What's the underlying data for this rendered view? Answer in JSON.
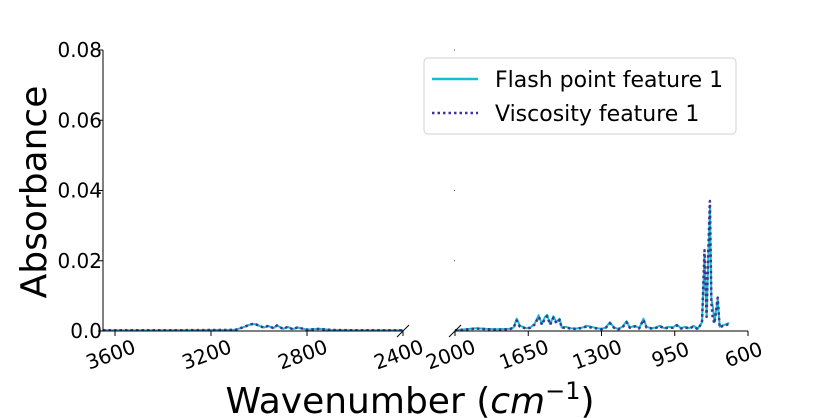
{
  "chart_data": {
    "type": "line",
    "title": "",
    "xlabel": "Wavenumber (cm⁻¹)",
    "xlabel_base": "Wavenumber (",
    "xlabel_unit": "cm",
    "xlabel_exp": "−1",
    "xlabel_close": ")",
    "ylabel": "Absorbance",
    "ylim": [
      0,
      0.08
    ],
    "y_ticks": [
      0.0,
      0.02,
      0.04,
      0.06,
      0.08
    ],
    "y_tick_labels": [
      "0.0",
      "0.02",
      "0.04",
      "0.06",
      "0.08"
    ],
    "broken_x_axis": true,
    "x_segments": [
      {
        "xlim": [
          3650,
          2400
        ],
        "ticks": [
          3600,
          3200,
          2800,
          2400
        ],
        "tick_labels": [
          "3600",
          "3200",
          "2800",
          "2400"
        ]
      },
      {
        "xlim": [
          2000,
          600
        ],
        "ticks": [
          2000,
          1650,
          1300,
          950,
          600
        ],
        "tick_labels": [
          "2000",
          "1650",
          "1300",
          "950",
          "600"
        ]
      }
    ],
    "legend_position": "top-right",
    "grid": false,
    "series": [
      {
        "name": "Flash point feature 1",
        "color": "#17becf",
        "style": "solid",
        "points": [
          [
            3650,
            0.0002
          ],
          [
            3400,
            0.0002
          ],
          [
            3100,
            0.0003
          ],
          [
            3060,
            0.0012
          ],
          [
            3040,
            0.0018
          ],
          [
            3020,
            0.002
          ],
          [
            3000,
            0.0015
          ],
          [
            2980,
            0.001
          ],
          [
            2960,
            0.0014
          ],
          [
            2940,
            0.0008
          ],
          [
            2925,
            0.0016
          ],
          [
            2900,
            0.0006
          ],
          [
            2880,
            0.0012
          ],
          [
            2860,
            0.0005
          ],
          [
            2840,
            0.001
          ],
          [
            2800,
            0.0004
          ],
          [
            2750,
            0.0006
          ],
          [
            2700,
            0.0003
          ],
          [
            2600,
            0.0002
          ],
          [
            2400,
            0.0002
          ],
          [
            2000,
            0.0002
          ],
          [
            1950,
            0.0005
          ],
          [
            1900,
            0.0008
          ],
          [
            1850,
            0.0006
          ],
          [
            1800,
            0.0005
          ],
          [
            1740,
            0.0006
          ],
          [
            1720,
            0.001
          ],
          [
            1705,
            0.0035
          ],
          [
            1690,
            0.0015
          ],
          [
            1660,
            0.0008
          ],
          [
            1640,
            0.001
          ],
          [
            1620,
            0.002
          ],
          [
            1600,
            0.0045
          ],
          [
            1585,
            0.002
          ],
          [
            1570,
            0.004
          ],
          [
            1560,
            0.0046
          ],
          [
            1545,
            0.002
          ],
          [
            1530,
            0.0042
          ],
          [
            1515,
            0.0025
          ],
          [
            1500,
            0.0035
          ],
          [
            1490,
            0.001
          ],
          [
            1470,
            0.0012
          ],
          [
            1450,
            0.0008
          ],
          [
            1420,
            0.0007
          ],
          [
            1390,
            0.001
          ],
          [
            1370,
            0.0015
          ],
          [
            1350,
            0.0012
          ],
          [
            1320,
            0.0008
          ],
          [
            1300,
            0.0006
          ],
          [
            1280,
            0.001
          ],
          [
            1260,
            0.0025
          ],
          [
            1240,
            0.001
          ],
          [
            1220,
            0.0006
          ],
          [
            1200,
            0.0012
          ],
          [
            1180,
            0.0028
          ],
          [
            1165,
            0.001
          ],
          [
            1140,
            0.0015
          ],
          [
            1120,
            0.0008
          ],
          [
            1100,
            0.0035
          ],
          [
            1085,
            0.0012
          ],
          [
            1060,
            0.0008
          ],
          [
            1040,
            0.001
          ],
          [
            1020,
            0.0015
          ],
          [
            1000,
            0.0008
          ],
          [
            980,
            0.0012
          ],
          [
            960,
            0.001
          ],
          [
            940,
            0.0018
          ],
          [
            920,
            0.0008
          ],
          [
            900,
            0.0012
          ],
          [
            880,
            0.0008
          ],
          [
            860,
            0.0015
          ],
          [
            840,
            0.0006
          ],
          [
            820,
            0.0025
          ],
          [
            808,
            0.021
          ],
          [
            798,
            0.004
          ],
          [
            790,
            0.02
          ],
          [
            782,
            0.035
          ],
          [
            775,
            0.009
          ],
          [
            768,
            0.007
          ],
          [
            760,
            0.0025
          ],
          [
            745,
            0.009
          ],
          [
            735,
            0.0012
          ],
          [
            725,
            0.0015
          ],
          [
            700,
            0.002
          ],
          [
            690,
            0.0023
          ]
        ]
      },
      {
        "name": "Viscosity feature 1",
        "color": "#3c3596",
        "style": "dotted",
        "points": [
          [
            3650,
            0.0002
          ],
          [
            3400,
            0.0002
          ],
          [
            3100,
            0.0003
          ],
          [
            3060,
            0.0012
          ],
          [
            3040,
            0.0018
          ],
          [
            3020,
            0.0021
          ],
          [
            3000,
            0.0015
          ],
          [
            2980,
            0.001
          ],
          [
            2960,
            0.0015
          ],
          [
            2940,
            0.0008
          ],
          [
            2925,
            0.0016
          ],
          [
            2900,
            0.0006
          ],
          [
            2880,
            0.0012
          ],
          [
            2860,
            0.0005
          ],
          [
            2840,
            0.001
          ],
          [
            2800,
            0.0004
          ],
          [
            2750,
            0.0006
          ],
          [
            2700,
            0.0003
          ],
          [
            2600,
            0.0002
          ],
          [
            2400,
            0.0002
          ],
          [
            2000,
            0.0002
          ],
          [
            1950,
            0.0004
          ],
          [
            1900,
            0.0007
          ],
          [
            1850,
            0.0005
          ],
          [
            1800,
            0.0004
          ],
          [
            1740,
            0.0005
          ],
          [
            1720,
            0.0009
          ],
          [
            1705,
            0.003
          ],
          [
            1690,
            0.0012
          ],
          [
            1660,
            0.0007
          ],
          [
            1640,
            0.0009
          ],
          [
            1620,
            0.0018
          ],
          [
            1600,
            0.004
          ],
          [
            1585,
            0.0018
          ],
          [
            1570,
            0.0036
          ],
          [
            1560,
            0.0042
          ],
          [
            1545,
            0.0018
          ],
          [
            1530,
            0.0038
          ],
          [
            1515,
            0.0022
          ],
          [
            1500,
            0.0032
          ],
          [
            1490,
            0.0009
          ],
          [
            1470,
            0.001
          ],
          [
            1450,
            0.0007
          ],
          [
            1420,
            0.0006
          ],
          [
            1390,
            0.0009
          ],
          [
            1370,
            0.0013
          ],
          [
            1350,
            0.001
          ],
          [
            1320,
            0.0007
          ],
          [
            1300,
            0.0005
          ],
          [
            1280,
            0.0009
          ],
          [
            1260,
            0.0022
          ],
          [
            1240,
            0.0009
          ],
          [
            1220,
            0.0005
          ],
          [
            1200,
            0.001
          ],
          [
            1180,
            0.0025
          ],
          [
            1165,
            0.0009
          ],
          [
            1140,
            0.0013
          ],
          [
            1120,
            0.0007
          ],
          [
            1100,
            0.0032
          ],
          [
            1085,
            0.001
          ],
          [
            1060,
            0.0007
          ],
          [
            1040,
            0.0009
          ],
          [
            1020,
            0.0013
          ],
          [
            1000,
            0.0007
          ],
          [
            980,
            0.001
          ],
          [
            960,
            0.0009
          ],
          [
            940,
            0.0016
          ],
          [
            920,
            0.0007
          ],
          [
            900,
            0.001
          ],
          [
            880,
            0.0007
          ],
          [
            860,
            0.0013
          ],
          [
            840,
            0.0005
          ],
          [
            820,
            0.0024
          ],
          [
            808,
            0.023
          ],
          [
            798,
            0.004
          ],
          [
            790,
            0.022
          ],
          [
            782,
            0.037
          ],
          [
            775,
            0.008
          ],
          [
            768,
            0.0035
          ],
          [
            760,
            0.0022
          ],
          [
            745,
            0.0095
          ],
          [
            735,
            0.001
          ],
          [
            725,
            0.0013
          ],
          [
            700,
            0.0018
          ],
          [
            690,
            0.0021
          ]
        ]
      }
    ]
  }
}
